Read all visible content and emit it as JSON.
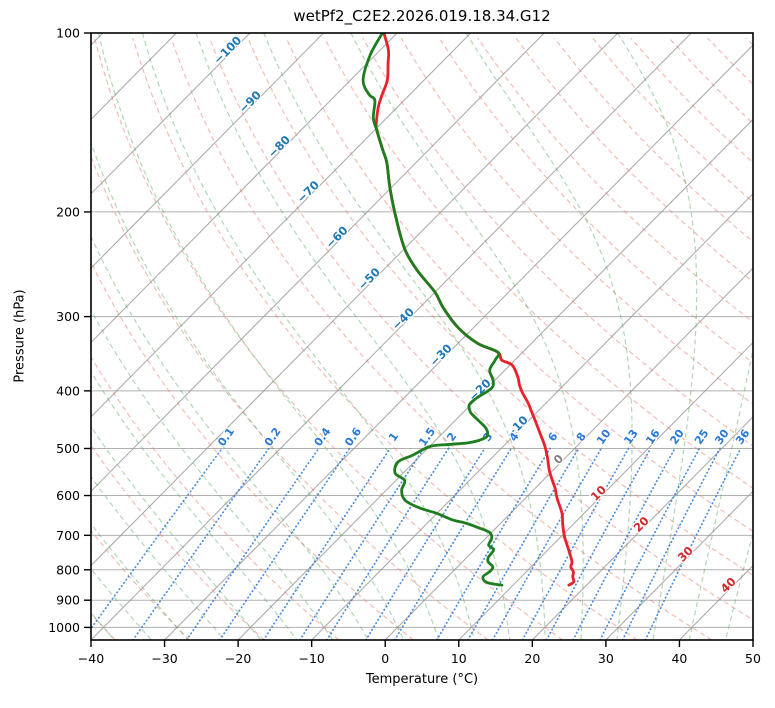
{
  "chart_data": {
    "type": "skewt_log_p",
    "title": "wetPf2_C2E2.2026.019.18.34.G12",
    "xlabel": "Temperature (°C)",
    "ylabel": "Pressure (hPa)",
    "x_ticks": [
      -40,
      -30,
      -20,
      -10,
      0,
      10,
      20,
      30,
      40,
      50
    ],
    "y_ticks": [
      100,
      200,
      300,
      400,
      500,
      600,
      700,
      800,
      900,
      1000
    ],
    "x_range_c": [
      -40,
      50
    ],
    "p_range_hpa": [
      100,
      1050
    ],
    "grid": true,
    "isotherm_step_c": 10,
    "dry_adiabat_theta_c": {
      "min": -40,
      "max": 200,
      "step": 10
    },
    "moist_adiabat_t0_c": {
      "min": -60,
      "max": 50,
      "step": 5
    },
    "mixing_ratio_lines_g_kg": [
      0.1,
      0.2,
      0.4,
      0.6,
      1,
      1.5,
      2,
      3,
      4,
      6,
      8,
      10,
      13,
      16,
      20,
      25,
      30,
      36
    ],
    "mixing_ratio_top_hpa": 500,
    "mixing_ratio_label_hpa": 482,
    "isotherm_labels": [
      {
        "t": -100,
        "p": 108
      },
      {
        "t": -90,
        "p": 132
      },
      {
        "t": -80,
        "p": 157
      },
      {
        "t": -70,
        "p": 187
      },
      {
        "t": -60,
        "p": 223
      },
      {
        "t": -50,
        "p": 262
      },
      {
        "t": -40,
        "p": 306
      },
      {
        "t": -30,
        "p": 352
      },
      {
        "t": -20,
        "p": 403
      },
      {
        "t": -10,
        "p": 465
      },
      {
        "t": 0,
        "p": 527
      },
      {
        "t": 10,
        "p": 601
      },
      {
        "t": 20,
        "p": 678
      },
      {
        "t": 30,
        "p": 761
      },
      {
        "t": 40,
        "p": 858
      }
    ],
    "series": [
      {
        "name": "temperature",
        "color": "#e8212c",
        "points": [
          [
            100,
            -81.8
          ],
          [
            106.8,
            -78.9
          ],
          [
            112.3,
            -77.2
          ],
          [
            120,
            -75.0
          ],
          [
            127.2,
            -73.7
          ],
          [
            133.2,
            -72.6
          ],
          [
            141.8,
            -70.7
          ],
          [
            145.7,
            -69.7
          ],
          [
            157.4,
            -66.2
          ],
          [
            165.5,
            -63.9
          ],
          [
            183.8,
            -59.8
          ],
          [
            208.9,
            -54.4
          ],
          [
            231.9,
            -49.7
          ],
          [
            250.6,
            -45.4
          ],
          [
            272.9,
            -40.0
          ],
          [
            289.3,
            -36.9
          ],
          [
            312.6,
            -32.2
          ],
          [
            332.5,
            -27.4
          ],
          [
            344.3,
            -23.4
          ],
          [
            355,
            -21.8
          ],
          [
            362,
            -19.7
          ],
          [
            379.4,
            -17.3
          ],
          [
            391.3,
            -16.0
          ],
          [
            403.6,
            -14.5
          ],
          [
            419.6,
            -12.4
          ],
          [
            434.5,
            -10.7
          ],
          [
            448,
            -9.2
          ],
          [
            471,
            -6.8
          ],
          [
            494,
            -4.5
          ],
          [
            517.6,
            -2.5
          ],
          [
            544.3,
            -0.5
          ],
          [
            570,
            1.6
          ],
          [
            583.4,
            2.7
          ],
          [
            606.3,
            4.3
          ],
          [
            642.8,
            7.0
          ],
          [
            673,
            8.7
          ],
          [
            705.5,
            10.6
          ],
          [
            750,
            13.4
          ],
          [
            776,
            14.9
          ],
          [
            791,
            15.4
          ],
          [
            806,
            16.4
          ],
          [
            822,
            17.0
          ],
          [
            838,
            17.8
          ],
          [
            849,
            17.6
          ]
        ]
      },
      {
        "name": "dewpoint",
        "color": "#1e7d1e",
        "points": [
          [
            100,
            -82.0
          ],
          [
            108.9,
            -80.7
          ],
          [
            120,
            -78.3
          ],
          [
            127,
            -75.5
          ],
          [
            129.7,
            -74.0
          ],
          [
            139,
            -71.8
          ],
          [
            145.7,
            -69.7
          ],
          [
            157.4,
            -66.2
          ],
          [
            165.5,
            -63.9
          ],
          [
            183.8,
            -59.8
          ],
          [
            208.9,
            -54.4
          ],
          [
            231.9,
            -49.7
          ],
          [
            250.6,
            -45.4
          ],
          [
            272.9,
            -40.0
          ],
          [
            289.3,
            -36.9
          ],
          [
            312.6,
            -32.2
          ],
          [
            332.5,
            -27.4
          ],
          [
            344.3,
            -23.4
          ],
          [
            355,
            -22.7
          ],
          [
            369,
            -22.1
          ],
          [
            383.6,
            -20.3
          ],
          [
            395.7,
            -19.4
          ],
          [
            411,
            -20.1
          ],
          [
            422,
            -20.2
          ],
          [
            434,
            -19.1
          ],
          [
            442.6,
            -17.8
          ],
          [
            460,
            -15.1
          ],
          [
            471,
            -13.9
          ],
          [
            480,
            -13.6
          ],
          [
            488.6,
            -15.0
          ],
          [
            492,
            -17.4
          ],
          [
            496,
            -19.9
          ],
          [
            513,
            -21.1
          ],
          [
            527,
            -22.2
          ],
          [
            550,
            -21.1
          ],
          [
            566,
            -18.8
          ],
          [
            588,
            -17.9
          ],
          [
            611,
            -16.1
          ],
          [
            630,
            -13.0
          ],
          [
            643,
            -10.0
          ],
          [
            660,
            -6.9
          ],
          [
            667,
            -4.9
          ],
          [
            681,
            -2.2
          ],
          [
            692,
            -0.3
          ],
          [
            708,
            0.8
          ],
          [
            727,
            1.3
          ],
          [
            740,
            2.6
          ],
          [
            762,
            2.9
          ],
          [
            776,
            3.5
          ],
          [
            791,
            4.8
          ],
          [
            806,
            5.0
          ],
          [
            822,
            4.8
          ],
          [
            838,
            5.8
          ],
          [
            845,
            7.1
          ],
          [
            849,
            8.5
          ]
        ]
      }
    ],
    "colors": {
      "pressure_grid": "#b0b0b0",
      "isotherm_line": "#929292",
      "dry_adiabat": "#e8796a",
      "moist_adiabat": "#46a050",
      "mixing_ratio": "#2a78d8",
      "isotherm_label_cold": "#1f77b4",
      "isotherm_label_zero": "#7f7f7f",
      "isotherm_label_warm": "#d62728",
      "frame": "#000000"
    }
  }
}
